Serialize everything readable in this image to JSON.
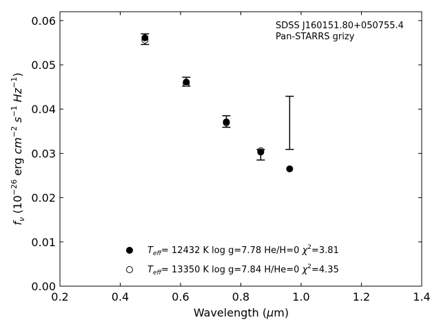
{
  "chart_data": {
    "type": "scatter",
    "annotation": [
      "SDSS J160151.80+050755.4",
      "Pan-STARRS grizy"
    ],
    "xlabel_text": "Wavelength (",
    "xlabel_mu": "μ",
    "xlabel_unit": "m)",
    "ylabel_f": "f",
    "ylabel_nu": "ν",
    "ylabel_mid": " (10",
    "ylabel_exp1": "−26",
    "ylabel_erg": " erg ",
    "ylabel_cm": "cm",
    "ylabel_exp2": "−2",
    "ylabel_s": " s",
    "ylabel_exp3": "−1",
    "ylabel_hz": " Hz",
    "ylabel_exp4": "−1",
    "ylabel_close": ")",
    "xlim": [
      0.2,
      1.4
    ],
    "ylim": [
      0.0,
      0.062
    ],
    "xticks": [
      0.2,
      0.4,
      0.6,
      0.8,
      1.0,
      1.2,
      1.4
    ],
    "xtick_labels": [
      "0.2",
      "0.4",
      "0.6",
      "0.8",
      "1.0",
      "1.2",
      "1.4"
    ],
    "yticks": [
      0.0,
      0.01,
      0.02,
      0.03,
      0.04,
      0.05,
      0.06
    ],
    "ytick_labels": [
      "0.00",
      "0.01",
      "0.02",
      "0.03",
      "0.04",
      "0.05",
      "0.06"
    ],
    "observed": {
      "x": [
        0.482,
        0.619,
        0.752,
        0.866,
        0.962
      ],
      "y": [
        0.0558,
        0.0462,
        0.0372,
        0.0297,
        0.0369
      ],
      "yerr": [
        0.0012,
        0.001,
        0.0013,
        0.0012,
        0.006
      ]
    },
    "series": [
      {
        "marker": "filled-circle",
        "x": [
          0.482,
          0.619,
          0.752,
          0.866,
          0.962
        ],
        "y": [
          0.0561,
          0.0461,
          0.0371,
          0.0303,
          0.0265
        ],
        "legend_teff_T": "T",
        "legend_teff_sub": "eff",
        "legend_rest": "= 12432 K  log g=7.78  He/H=0  ",
        "legend_chi": "χ",
        "legend_chi_sup": "2",
        "legend_chi_val": "=3.81"
      },
      {
        "marker": "open-circle",
        "x": [
          0.482,
          0.619,
          0.752,
          0.866
        ],
        "y": [
          0.0556,
          0.0458,
          0.0369,
          0.0306
        ],
        "legend_teff_T": "T",
        "legend_teff_sub": "eff",
        "legend_rest": "= 13350 K  log g=7.84  H/He=0  ",
        "legend_chi": "χ",
        "legend_chi_sup": "2",
        "legend_chi_val": "=4.35"
      }
    ]
  }
}
